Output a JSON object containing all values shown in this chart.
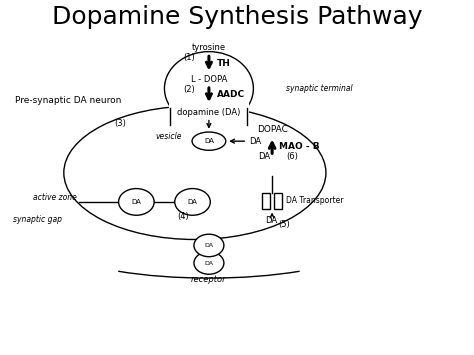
{
  "title": "Dopamine Synthesis Pathway",
  "title_fontsize": 18,
  "labels": {
    "pre_synaptic": "Pre-synaptic DA neuron",
    "synaptic_terminal": "synaptic terminal",
    "tyrosine": "tyrosine",
    "step1": "(1)",
    "TH": "TH",
    "L_DOPA": "L - DOPA",
    "step2": "(2)",
    "AADC": "AADC",
    "dopamine": "dopamine (DA)",
    "step3": "(3)",
    "vesicle": "vesicle",
    "active_zone": "active zone",
    "synaptic_gap": "synaptic gap",
    "step4": "(4)",
    "DA_transporter": "DA Transporter",
    "step5": "(5)",
    "DOPAC": "DOPAC",
    "MAO_B": "MAO - B",
    "step6": "(6)",
    "DA": "DA",
    "receptor": "receptor"
  }
}
